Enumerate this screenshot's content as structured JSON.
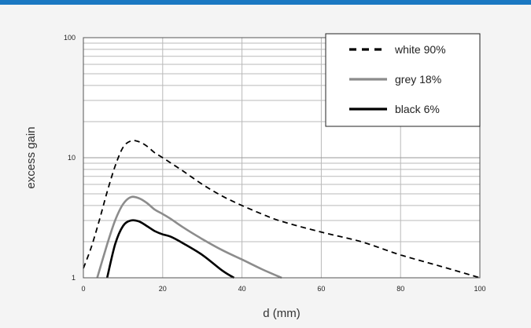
{
  "colors": {
    "accent_bar": "#1a78c2",
    "background": "#f4f4f4",
    "plot_area": "#ffffff",
    "grid": "#b9b9b9",
    "white_series": "#000000",
    "grey_series": "#8c8c8c",
    "black_series": "#000000"
  },
  "chart_data": {
    "type": "line",
    "title": "",
    "xlabel": "d (mm)",
    "ylabel": "excess gain",
    "xlim": [
      0,
      100
    ],
    "ylim": [
      1,
      100
    ],
    "yscale": "log",
    "grid": true,
    "legend_position": "top-right",
    "x_ticks": [
      "0",
      "20",
      "40",
      "60",
      "80",
      "100"
    ],
    "y_ticks": [
      "1",
      "10",
      "100"
    ],
    "series": [
      {
        "name": "white 90%",
        "style": "dashed",
        "color": "#000000",
        "points": [
          [
            0,
            1.2
          ],
          [
            2,
            1.8
          ],
          [
            4,
            3.0
          ],
          [
            6,
            5.2
          ],
          [
            8,
            8.5
          ],
          [
            10,
            12.2
          ],
          [
            12,
            13.8
          ],
          [
            14,
            13.6
          ],
          [
            16,
            12.5
          ],
          [
            18,
            11.0
          ],
          [
            20,
            10.0
          ],
          [
            25,
            7.8
          ],
          [
            30,
            6.0
          ],
          [
            35,
            4.8
          ],
          [
            40,
            4.0
          ],
          [
            45,
            3.4
          ],
          [
            50,
            2.95
          ],
          [
            60,
            2.4
          ],
          [
            70,
            2.0
          ],
          [
            80,
            1.55
          ],
          [
            90,
            1.25
          ],
          [
            100,
            1.0
          ]
        ]
      },
      {
        "name": "grey 18%",
        "style": "solid",
        "color": "#8c8c8c",
        "points": [
          [
            3.5,
            1.0
          ],
          [
            6,
            1.9
          ],
          [
            8,
            3.0
          ],
          [
            10,
            4.1
          ],
          [
            12,
            4.7
          ],
          [
            14,
            4.6
          ],
          [
            16,
            4.2
          ],
          [
            18,
            3.7
          ],
          [
            20,
            3.4
          ],
          [
            22,
            3.1
          ],
          [
            25,
            2.65
          ],
          [
            30,
            2.1
          ],
          [
            35,
            1.7
          ],
          [
            40,
            1.42
          ],
          [
            45,
            1.18
          ],
          [
            50,
            1.0
          ]
        ]
      },
      {
        "name": "black 6%",
        "style": "solid",
        "color": "#000000",
        "points": [
          [
            6,
            1.0
          ],
          [
            8,
            1.9
          ],
          [
            10,
            2.7
          ],
          [
            12,
            3.0
          ],
          [
            14,
            2.95
          ],
          [
            16,
            2.7
          ],
          [
            18,
            2.45
          ],
          [
            20,
            2.3
          ],
          [
            22,
            2.2
          ],
          [
            25,
            1.95
          ],
          [
            30,
            1.55
          ],
          [
            35,
            1.15
          ],
          [
            38,
            1.0
          ]
        ]
      }
    ]
  }
}
